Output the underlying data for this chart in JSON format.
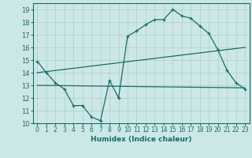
{
  "title": "",
  "xlabel": "Humidex (Indice chaleur)",
  "bg_color": "#cce8e6",
  "grid_color": "#aaccca",
  "line_color": "#1a6b6b",
  "xlim": [
    -0.5,
    23.5
  ],
  "ylim": [
    10,
    19.5
  ],
  "xticks": [
    0,
    1,
    2,
    3,
    4,
    5,
    6,
    7,
    8,
    9,
    10,
    11,
    12,
    13,
    14,
    15,
    16,
    17,
    18,
    19,
    20,
    21,
    22,
    23
  ],
  "yticks": [
    10,
    11,
    12,
    13,
    14,
    15,
    16,
    17,
    18,
    19
  ],
  "curve1_x": [
    0,
    1,
    2,
    3,
    4,
    5,
    6,
    7,
    8,
    9,
    10,
    11,
    12,
    13,
    14,
    15,
    16,
    17,
    18,
    19,
    20,
    21,
    22,
    23
  ],
  "curve1_y": [
    14.9,
    14.0,
    13.2,
    12.7,
    11.4,
    11.4,
    10.5,
    10.2,
    13.4,
    12.0,
    16.9,
    17.3,
    17.8,
    18.2,
    18.2,
    19.0,
    18.5,
    18.3,
    17.7,
    17.1,
    15.8,
    14.2,
    13.2,
    12.7
  ],
  "line1_x": [
    0,
    23
  ],
  "line1_y": [
    14.0,
    16.0
  ],
  "line2_x": [
    0,
    23
  ],
  "line2_y": [
    13.0,
    12.8
  ]
}
